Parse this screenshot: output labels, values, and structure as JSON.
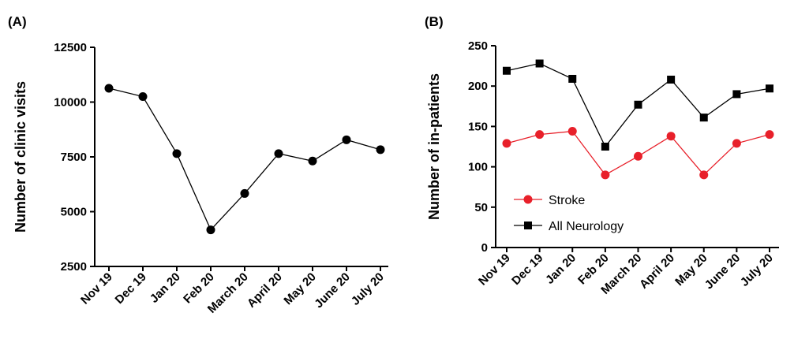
{
  "chart_data": [
    {
      "panel_label": "(A)",
      "type": "line",
      "title": "",
      "xlabel": "",
      "ylabel": "Number of clinic visits",
      "categories": [
        "Nov 19",
        "Dec 19",
        "Jan 20",
        "Feb 20",
        "March 20",
        "April 20",
        "May 20",
        "June 20",
        "July 20"
      ],
      "ylim": [
        2500,
        12500
      ],
      "yticks": [
        2500,
        5000,
        7500,
        10000,
        12500
      ],
      "grid": false,
      "series": [
        {
          "values": [
            10630,
            10250,
            7650,
            4170,
            5830,
            7650,
            7310,
            8280,
            7830
          ],
          "color": "#000000",
          "marker": "circle"
        }
      ]
    },
    {
      "panel_label": "(B)",
      "type": "line",
      "title": "",
      "xlabel": "",
      "ylabel": "Number of in-patients",
      "categories": [
        "Nov 19",
        "Dec 19",
        "Jan 20",
        "Feb 20",
        "March 20",
        "April 20",
        "May 20",
        "June 20",
        "July 20"
      ],
      "ylim": [
        0,
        250
      ],
      "yticks": [
        0,
        50,
        100,
        150,
        200,
        250
      ],
      "grid": false,
      "legend_position": "lower-left",
      "series": [
        {
          "name": "Stroke",
          "values": [
            129,
            140,
            144,
            90,
            113,
            138,
            90,
            129,
            140
          ],
          "color": "#e8202a",
          "marker": "circle"
        },
        {
          "name": "All Neurology",
          "values": [
            219,
            228,
            209,
            125,
            177,
            208,
            161,
            190,
            197
          ],
          "color": "#000000",
          "marker": "square"
        }
      ]
    }
  ]
}
